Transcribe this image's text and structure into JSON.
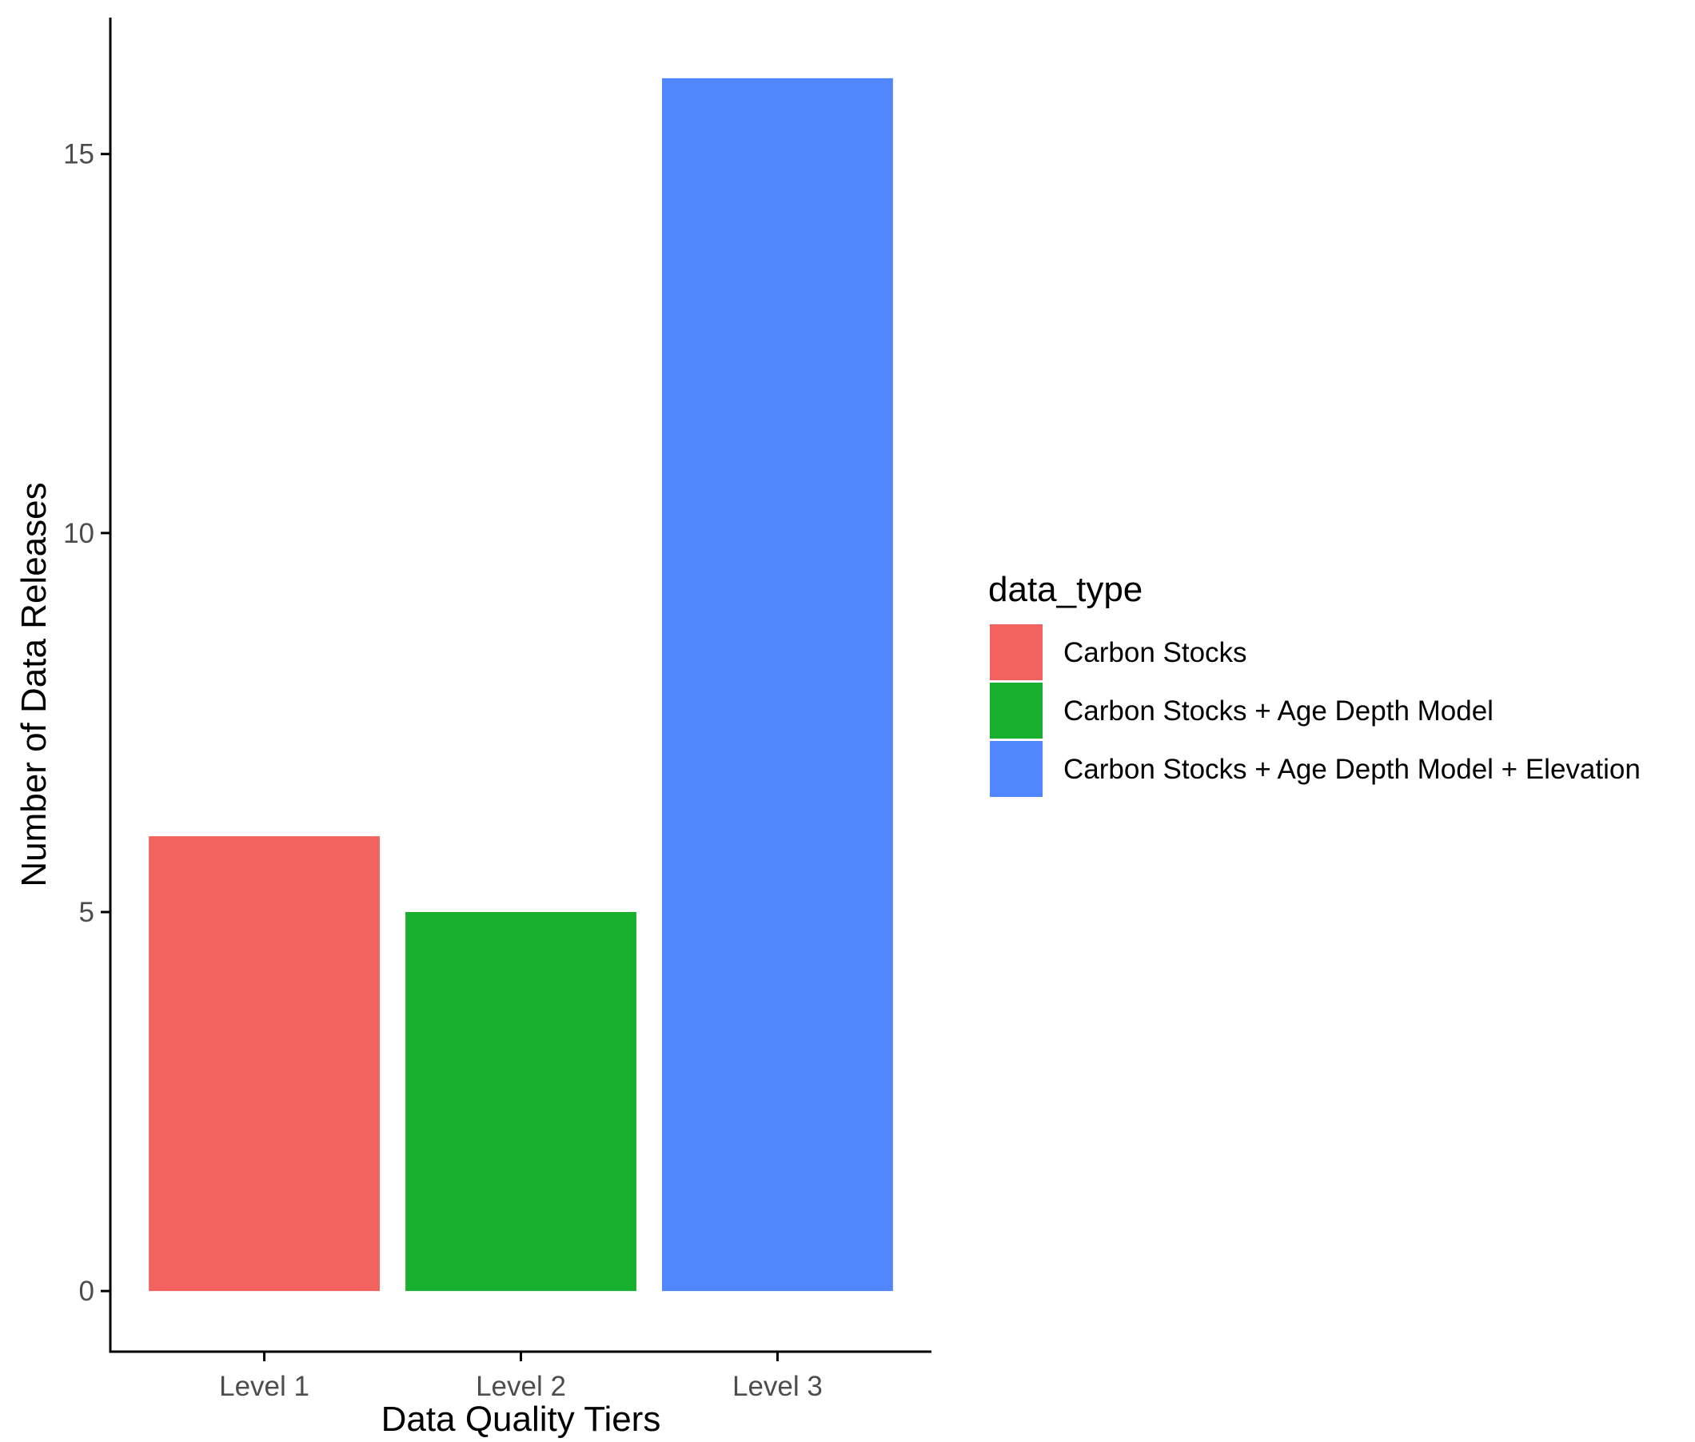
{
  "chart_data": {
    "type": "bar",
    "categories": [
      "Level 1",
      "Level 2",
      "Level 3"
    ],
    "values": [
      6,
      5,
      16
    ],
    "colors": [
      "#F26360",
      "#1AB02F",
      "#5087FF"
    ],
    "xlabel": "Data Quality Tiers",
    "ylabel": "Number of Data Releases",
    "ylim": [
      -0.8,
      16.8
    ],
    "yticks": [
      0,
      5,
      10,
      15
    ],
    "ytick_labels": [
      "0",
      "5",
      "10",
      "15"
    ],
    "grid": false,
    "legend": {
      "title": "data_type",
      "position": "right",
      "entries": [
        {
          "label": "Carbon Stocks",
          "color": "#F26360"
        },
        {
          "label": "Carbon Stocks + Age Depth Model",
          "color": "#1AB02F"
        },
        {
          "label": "Carbon Stocks + Age Depth Model + Elevation",
          "color": "#5087FF"
        }
      ]
    }
  }
}
